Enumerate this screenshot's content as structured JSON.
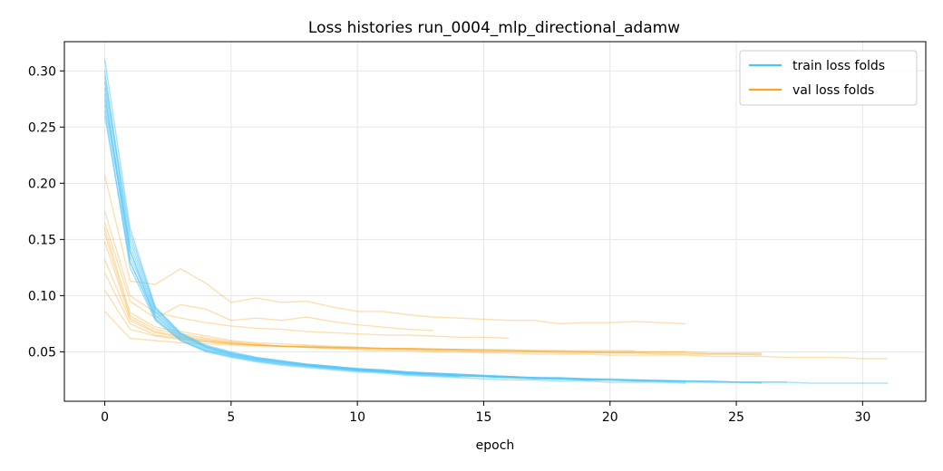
{
  "chart_data": {
    "type": "line",
    "title": "Loss histories run_0004_mlp_directional_adamw",
    "xlabel": "epoch",
    "ylabel": "",
    "xlim": [
      -1.6,
      32.5
    ],
    "ylim": [
      0.006,
      0.326
    ],
    "xticks": [
      0,
      5,
      10,
      15,
      20,
      25,
      30
    ],
    "yticks": [
      0.05,
      0.1,
      0.15,
      0.2,
      0.25,
      0.3
    ],
    "ytick_labels": [
      "0.05",
      "0.10",
      "0.15",
      "0.20",
      "0.25",
      "0.30"
    ],
    "grid": true,
    "legend": {
      "position": "top-right",
      "entries": [
        {
          "label": "train loss folds",
          "color": "#4fc3f7"
        },
        {
          "label": "val loss folds",
          "color": "#f5a623"
        }
      ]
    },
    "colors": {
      "train": "#4fc3f7",
      "val": "#f5a623"
    },
    "train_series": [
      [
        0.31,
        0.16,
        0.09,
        0.067,
        0.056,
        0.05,
        0.045,
        0.042,
        0.039,
        0.037,
        0.035,
        0.034,
        0.032,
        0.031,
        0.03,
        0.029,
        0.028,
        0.027,
        0.026,
        0.026,
        0.025,
        0.025,
        0.024,
        0.024,
        0.023,
        0.023,
        0.023,
        0.023,
        0.022,
        0.022,
        0.022,
        0.022
      ],
      [
        0.3,
        0.14,
        0.085,
        0.064,
        0.054,
        0.048,
        0.044,
        0.041,
        0.038,
        0.036,
        0.034,
        0.033,
        0.031,
        0.03,
        0.029,
        0.028,
        0.027,
        0.026,
        0.026,
        0.025,
        0.025,
        0.024,
        0.024,
        0.023,
        0.023,
        0.023,
        0.022
      ],
      [
        0.29,
        0.15,
        0.088,
        0.066,
        0.055,
        0.049,
        0.045,
        0.042,
        0.039,
        0.037,
        0.035,
        0.034,
        0.032,
        0.031,
        0.03,
        0.029,
        0.028,
        0.027,
        0.027,
        0.026,
        0.025,
        0.025,
        0.024,
        0.024,
        0.024,
        0.023,
        0.023
      ],
      [
        0.28,
        0.13,
        0.082,
        0.062,
        0.052,
        0.047,
        0.043,
        0.04,
        0.038,
        0.036,
        0.034,
        0.032,
        0.031,
        0.03,
        0.029,
        0.028,
        0.027,
        0.027,
        0.026,
        0.025,
        0.025,
        0.024,
        0.024,
        0.024
      ],
      [
        0.27,
        0.14,
        0.08,
        0.061,
        0.051,
        0.046,
        0.042,
        0.039,
        0.037,
        0.035,
        0.033,
        0.032,
        0.03,
        0.029,
        0.028
      ],
      [
        0.285,
        0.135,
        0.083,
        0.063,
        0.053,
        0.047,
        0.043,
        0.04,
        0.038,
        0.036,
        0.034,
        0.033,
        0.031,
        0.03,
        0.029,
        0.028,
        0.027
      ],
      [
        0.265,
        0.125,
        0.078,
        0.06,
        0.05,
        0.045,
        0.041,
        0.038,
        0.036,
        0.034,
        0.032,
        0.031,
        0.029,
        0.028,
        0.027,
        0.026,
        0.025,
        0.025,
        0.024,
        0.024,
        0.023,
        0.023,
        0.023,
        0.022
      ],
      [
        0.26,
        0.13,
        0.079,
        0.06,
        0.051,
        0.046,
        0.042,
        0.039,
        0.037,
        0.035,
        0.033,
        0.032,
        0.03,
        0.029,
        0.028,
        0.028,
        0.027,
        0.026,
        0.026,
        0.025,
        0.025
      ],
      [
        0.275,
        0.145,
        0.086,
        0.065,
        0.054,
        0.048,
        0.044,
        0.041,
        0.038,
        0.036,
        0.034,
        0.033,
        0.031,
        0.03,
        0.029,
        0.028,
        0.028,
        0.027,
        0.026,
        0.026,
        0.025,
        0.025,
        0.024,
        0.024,
        0.024,
        0.023,
        0.023,
        0.023
      ],
      [
        0.295,
        0.155,
        0.089,
        0.066,
        0.055,
        0.049,
        0.044,
        0.041,
        0.039,
        0.037,
        0.035,
        0.033,
        0.032,
        0.031,
        0.03,
        0.029,
        0.028,
        0.027,
        0.027,
        0.026,
        0.026,
        0.025,
        0.025,
        0.024
      ]
    ],
    "val_series": [
      [
        0.207,
        0.113,
        0.11,
        0.124,
        0.111,
        0.094,
        0.098,
        0.094,
        0.095,
        0.09,
        0.086,
        0.086,
        0.083,
        0.081,
        0.08,
        0.079,
        0.078,
        0.078,
        0.075,
        0.076,
        0.076,
        0.077,
        0.076,
        0.075
      ],
      [
        0.175,
        0.1,
        0.085,
        0.08,
        0.076,
        0.073,
        0.071,
        0.07,
        0.068,
        0.067,
        0.066,
        0.065,
        0.065,
        0.064,
        0.063,
        0.063,
        0.062
      ],
      [
        0.165,
        0.095,
        0.08,
        0.092,
        0.088,
        0.078,
        0.08,
        0.078,
        0.081,
        0.077,
        0.074,
        0.072,
        0.07,
        0.069
      ],
      [
        0.16,
        0.085,
        0.072,
        0.068,
        0.064,
        0.06,
        0.058,
        0.057,
        0.056,
        0.055,
        0.054,
        0.053,
        0.053,
        0.052,
        0.052,
        0.051,
        0.051,
        0.05,
        0.05,
        0.05,
        0.049,
        0.049,
        0.049,
        0.049,
        0.048,
        0.048,
        0.048
      ],
      [
        0.155,
        0.082,
        0.07,
        0.066,
        0.062,
        0.059,
        0.057,
        0.055,
        0.054,
        0.053,
        0.053,
        0.052,
        0.052,
        0.051,
        0.051,
        0.05,
        0.05,
        0.05,
        0.049,
        0.049,
        0.049,
        0.049,
        0.048,
        0.048,
        0.048,
        0.048,
        0.047
      ],
      [
        0.148,
        0.08,
        0.068,
        0.064,
        0.061,
        0.058,
        0.056,
        0.055,
        0.054,
        0.053,
        0.052,
        0.051,
        0.051,
        0.05,
        0.05,
        0.049,
        0.049,
        0.048,
        0.048,
        0.048,
        0.047,
        0.047,
        0.047,
        0.047,
        0.046,
        0.046,
        0.046,
        0.045,
        0.045,
        0.045,
        0.044,
        0.044
      ],
      [
        0.132,
        0.078,
        0.067,
        0.063,
        0.06,
        0.058,
        0.056,
        0.055,
        0.054,
        0.054,
        0.053,
        0.053,
        0.052,
        0.052,
        0.052,
        0.051,
        0.051,
        0.051,
        0.05,
        0.05,
        0.05,
        0.05,
        0.05,
        0.05
      ],
      [
        0.12,
        0.075,
        0.065,
        0.062,
        0.059,
        0.057,
        0.056,
        0.055,
        0.055,
        0.054,
        0.054,
        0.053,
        0.053,
        0.052,
        0.052
      ],
      [
        0.105,
        0.07,
        0.064,
        0.061,
        0.059,
        0.057,
        0.056,
        0.055,
        0.055,
        0.054,
        0.054,
        0.053,
        0.053,
        0.053,
        0.052,
        0.052,
        0.052,
        0.051,
        0.051,
        0.051,
        0.051,
        0.051
      ],
      [
        0.086,
        0.062,
        0.06,
        0.058,
        0.057,
        0.056,
        0.055,
        0.055,
        0.054,
        0.054,
        0.053,
        0.053,
        0.053,
        0.052,
        0.052,
        0.052,
        0.051,
        0.051,
        0.051,
        0.05,
        0.05,
        0.05,
        0.05,
        0.05,
        0.049,
        0.049,
        0.049
      ]
    ]
  }
}
